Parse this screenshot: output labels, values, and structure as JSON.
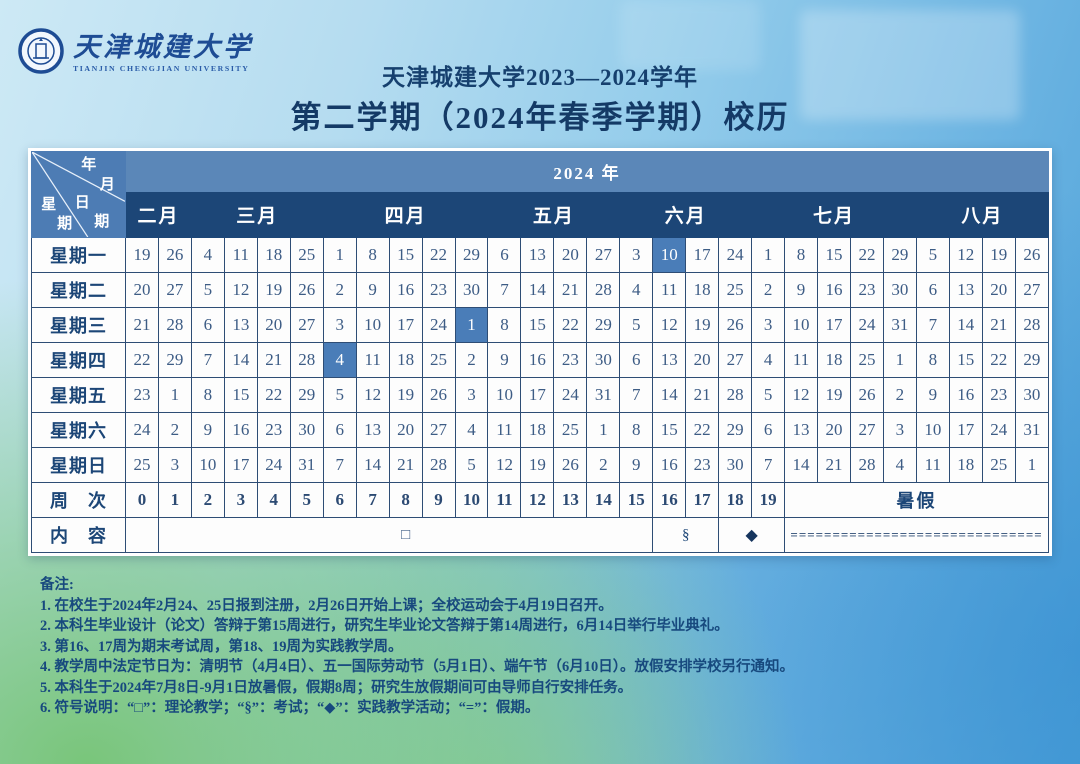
{
  "header": {
    "logo_cn": "天津城建大学",
    "logo_en": "TIANJIN CHENGJIAN UNIVERSITY",
    "title_line1": "天津城建大学2023—2024学年",
    "title_line2": "第二学期（2024年春季学期）校历"
  },
  "colors": {
    "navy": "#1c4677",
    "year_band_blue": "#5b87b8",
    "corner_blue": "#4d7cb4",
    "highlight_blue": "#4a7db8"
  },
  "calendar": {
    "corner": {
      "year": "年",
      "month": "月",
      "date_top": "日",
      "date_bottom": "期",
      "week_top": "星",
      "week_bottom": "期"
    },
    "year_header": "2024 年",
    "months": [
      {
        "label": "二月",
        "span": 2
      },
      {
        "label": "三月",
        "span": 4
      },
      {
        "label": "四月",
        "span": 5
      },
      {
        "label": "五月",
        "span": 4
      },
      {
        "label": "六月",
        "span": 4
      },
      {
        "label": "七月",
        "span": 5
      },
      {
        "label": "八月",
        "span": 4
      }
    ],
    "day_rows": [
      {
        "label": "星期一",
        "values": [
          19,
          26,
          4,
          11,
          18,
          25,
          1,
          8,
          15,
          22,
          29,
          6,
          13,
          20,
          27,
          3,
          10,
          17,
          24,
          1,
          8,
          15,
          22,
          29,
          5,
          12,
          19,
          26
        ],
        "highlights": [
          16
        ]
      },
      {
        "label": "星期二",
        "values": [
          20,
          27,
          5,
          12,
          19,
          26,
          2,
          9,
          16,
          23,
          30,
          7,
          14,
          21,
          28,
          4,
          11,
          18,
          25,
          2,
          9,
          16,
          23,
          30,
          6,
          13,
          20,
          27
        ],
        "highlights": []
      },
      {
        "label": "星期三",
        "values": [
          21,
          28,
          6,
          13,
          20,
          27,
          3,
          10,
          17,
          24,
          1,
          8,
          15,
          22,
          29,
          5,
          12,
          19,
          26,
          3,
          10,
          17,
          24,
          31,
          7,
          14,
          21,
          28
        ],
        "highlights": [
          10
        ]
      },
      {
        "label": "星期四",
        "values": [
          22,
          29,
          7,
          14,
          21,
          28,
          4,
          11,
          18,
          25,
          2,
          9,
          16,
          23,
          30,
          6,
          13,
          20,
          27,
          4,
          11,
          18,
          25,
          1,
          8,
          15,
          22,
          29
        ],
        "highlights": [
          6
        ]
      },
      {
        "label": "星期五",
        "values": [
          23,
          1,
          8,
          15,
          22,
          29,
          5,
          12,
          19,
          26,
          3,
          10,
          17,
          24,
          31,
          7,
          14,
          21,
          28,
          5,
          12,
          19,
          26,
          2,
          9,
          16,
          23,
          30
        ],
        "highlights": []
      },
      {
        "label": "星期六",
        "values": [
          24,
          2,
          9,
          16,
          23,
          30,
          6,
          13,
          20,
          27,
          4,
          11,
          18,
          25,
          1,
          8,
          15,
          22,
          29,
          6,
          13,
          20,
          27,
          3,
          10,
          17,
          24,
          31
        ],
        "highlights": []
      },
      {
        "label": "星期日",
        "values": [
          25,
          3,
          10,
          17,
          24,
          31,
          7,
          14,
          21,
          28,
          5,
          12,
          19,
          26,
          2,
          9,
          16,
          23,
          30,
          7,
          14,
          21,
          28,
          4,
          11,
          18,
          25,
          1
        ],
        "highlights": []
      }
    ],
    "week_row": {
      "label": "周　次",
      "values": [
        "0",
        "1",
        "2",
        "3",
        "4",
        "5",
        "6",
        "7",
        "8",
        "9",
        "10",
        "11",
        "12",
        "13",
        "14",
        "15",
        "16",
        "17",
        "18",
        "19"
      ],
      "summer": {
        "label": "暑假",
        "span": 8
      }
    },
    "content_row": {
      "label": "内　容",
      "cells": [
        {
          "symbol": "",
          "span": 1,
          "kind": "empty"
        },
        {
          "symbol": "□",
          "span": 15,
          "kind": "square"
        },
        {
          "symbol": "§",
          "span": 2,
          "kind": "section"
        },
        {
          "symbol": "◆",
          "span": 2,
          "kind": "diamond"
        },
        {
          "symbol": "==============================",
          "span": 8,
          "kind": "eq"
        }
      ]
    }
  },
  "notes": {
    "heading": "备注:",
    "lines": [
      "1. 在校生于2024年2月24、25日报到注册，2月26日开始上课；全校运动会于4月19日召开。",
      "2. 本科生毕业设计（论文）答辩于第15周进行，研究生毕业论文答辩于第14周进行，6月14日举行毕业典礼。",
      "3. 第16、17周为期末考试周，第18、19周为实践教学周。",
      "4. 教学周中法定节日为：清明节（4月4日）、五一国际劳动节（5月1日）、端午节（6月10日）。放假安排学校另行通知。",
      "5. 本科生于2024年7月8日-9月1日放暑假，假期8周；研究生放假期间可由导师自行安排任务。",
      "6. 符号说明：“□”：理论教学；“§”：考试；“◆”：实践教学活动；“=”：假期。"
    ]
  }
}
